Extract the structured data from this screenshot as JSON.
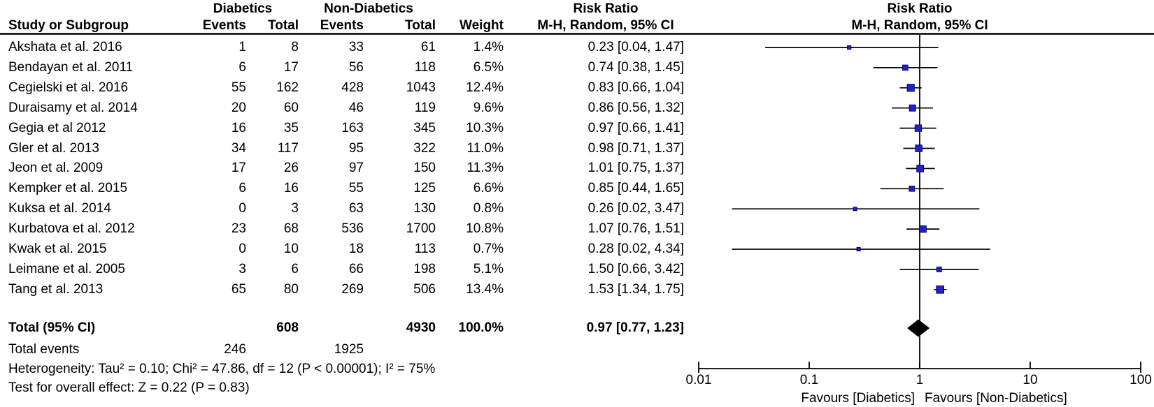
{
  "chart_data": {
    "type": "table",
    "subtype": "forest-plot",
    "effect_measure": "Risk Ratio",
    "x_scale": "log10",
    "header": {
      "study": "Study or Subgroup",
      "group_experimental": "Diabetics",
      "group_control": "Non-Diabetics",
      "events": "Events",
      "total": "Total",
      "weight": "Weight",
      "risk_ratio": "Risk Ratio",
      "method": "M-H, Random, 95% CI"
    },
    "studies": [
      {
        "name": "Akshata et al. 2016",
        "d_events": "1",
        "d_total": "8",
        "nd_events": "33",
        "nd_total": "61",
        "weight": 1.4,
        "weight_label": "1.4%",
        "rr": 0.23,
        "ci_low": 0.04,
        "ci_high": 1.47,
        "rr_label": "0.23 [0.04, 1.47]"
      },
      {
        "name": "Bendayan et al. 2011",
        "d_events": "6",
        "d_total": "17",
        "nd_events": "56",
        "nd_total": "118",
        "weight": 6.5,
        "weight_label": "6.5%",
        "rr": 0.74,
        "ci_low": 0.38,
        "ci_high": 1.45,
        "rr_label": "0.74 [0.38, 1.45]"
      },
      {
        "name": "Cegielski et al. 2016",
        "d_events": "55",
        "d_total": "162",
        "nd_events": "428",
        "nd_total": "1043",
        "weight": 12.4,
        "weight_label": "12.4%",
        "rr": 0.83,
        "ci_low": 0.66,
        "ci_high": 1.04,
        "rr_label": "0.83 [0.66, 1.04]"
      },
      {
        "name": "Duraisamy et al. 2014",
        "d_events": "20",
        "d_total": "60",
        "nd_events": "46",
        "nd_total": "119",
        "weight": 9.6,
        "weight_label": "9.6%",
        "rr": 0.86,
        "ci_low": 0.56,
        "ci_high": 1.32,
        "rr_label": "0.86 [0.56, 1.32]"
      },
      {
        "name": "Gegia et al 2012",
        "d_events": "16",
        "d_total": "35",
        "nd_events": "163",
        "nd_total": "345",
        "weight": 10.3,
        "weight_label": "10.3%",
        "rr": 0.97,
        "ci_low": 0.66,
        "ci_high": 1.41,
        "rr_label": "0.97 [0.66, 1.41]"
      },
      {
        "name": "Gler et al. 2013",
        "d_events": "34",
        "d_total": "117",
        "nd_events": "95",
        "nd_total": "322",
        "weight": 11.0,
        "weight_label": "11.0%",
        "rr": 0.98,
        "ci_low": 0.71,
        "ci_high": 1.37,
        "rr_label": "0.98 [0.71, 1.37]"
      },
      {
        "name": "Jeon et al. 2009",
        "d_events": "17",
        "d_total": "26",
        "nd_events": "97",
        "nd_total": "150",
        "weight": 11.3,
        "weight_label": "11.3%",
        "rr": 1.01,
        "ci_low": 0.75,
        "ci_high": 1.37,
        "rr_label": "1.01 [0.75, 1.37]"
      },
      {
        "name": "Kempker et al. 2015",
        "d_events": "6",
        "d_total": "16",
        "nd_events": "55",
        "nd_total": "125",
        "weight": 6.6,
        "weight_label": "6.6%",
        "rr": 0.85,
        "ci_low": 0.44,
        "ci_high": 1.65,
        "rr_label": "0.85 [0.44, 1.65]"
      },
      {
        "name": "Kuksa et al. 2014",
        "d_events": "0",
        "d_total": "3",
        "nd_events": "63",
        "nd_total": "130",
        "weight": 0.8,
        "weight_label": "0.8%",
        "rr": 0.26,
        "ci_low": 0.02,
        "ci_high": 3.47,
        "rr_label": "0.26 [0.02, 3.47]"
      },
      {
        "name": "Kurbatova et al. 2012",
        "d_events": "23",
        "d_total": "68",
        "nd_events": "536",
        "nd_total": "1700",
        "weight": 10.8,
        "weight_label": "10.8%",
        "rr": 1.07,
        "ci_low": 0.76,
        "ci_high": 1.51,
        "rr_label": "1.07 [0.76, 1.51]"
      },
      {
        "name": "Kwak et al. 2015",
        "d_events": "0",
        "d_total": "10",
        "nd_events": "18",
        "nd_total": "113",
        "weight": 0.7,
        "weight_label": "0.7%",
        "rr": 0.28,
        "ci_low": 0.02,
        "ci_high": 4.34,
        "rr_label": "0.28 [0.02, 4.34]"
      },
      {
        "name": "Leimane et al. 2005",
        "d_events": "3",
        "d_total": "6",
        "nd_events": "66",
        "nd_total": "198",
        "weight": 5.1,
        "weight_label": "5.1%",
        "rr": 1.5,
        "ci_low": 0.66,
        "ci_high": 3.42,
        "rr_label": "1.50 [0.66, 3.42]"
      },
      {
        "name": "Tang et al. 2013",
        "d_events": "65",
        "d_total": "80",
        "nd_events": "269",
        "nd_total": "506",
        "weight": 13.4,
        "weight_label": "13.4%",
        "rr": 1.53,
        "ci_low": 1.34,
        "ci_high": 1.75,
        "rr_label": "1.53 [1.34, 1.75]"
      }
    ],
    "total": {
      "label": "Total (95% CI)",
      "d_total": "608",
      "nd_total": "4930",
      "weight_label": "100.0%",
      "rr": 0.97,
      "ci_low": 0.77,
      "ci_high": 1.23,
      "rr_label": "0.97 [0.77, 1.23]"
    },
    "total_events": {
      "label": "Total events",
      "d_events": "246",
      "nd_events": "1925"
    },
    "stats": {
      "heterogeneity": "Heterogeneity: Tau² = 0.10; Chi² = 47.86, df = 12 (P < 0.00001); I² = 75%",
      "overall_effect": "Test for overall effect: Z = 0.22 (P = 0.83)"
    },
    "axis": {
      "ticks": [
        0.01,
        0.1,
        1,
        10,
        100
      ],
      "tick_labels": [
        "0.01",
        "0.1",
        "1",
        "10",
        "100"
      ],
      "favours_left": "Favours [Diabetics]",
      "favours_right": "Favours [Non-Diabetics]"
    },
    "colors": {
      "marker_fill": "#2222CC",
      "marker_stroke": "#000066",
      "line": "#000000",
      "diamond": "#000000",
      "background": "#FFFFFF"
    }
  }
}
